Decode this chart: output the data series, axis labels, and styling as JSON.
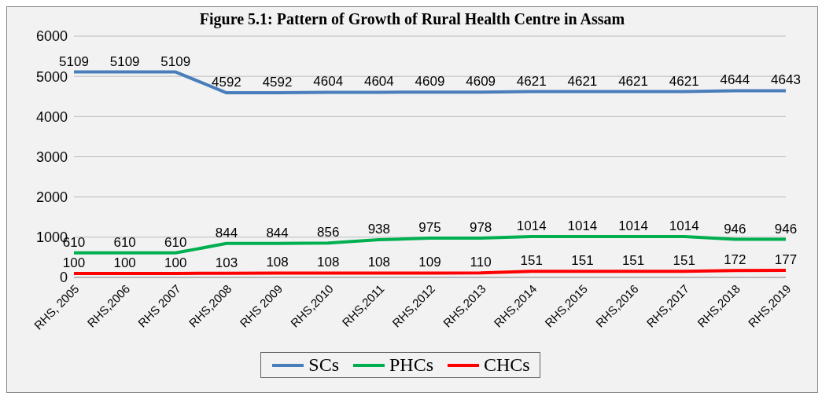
{
  "chart_data": {
    "type": "line",
    "title": "Figure 5.1: Pattern of Growth of Rural Health Centre in Assam",
    "categories": [
      "RHS, 2005",
      "RHS,2006",
      "RHS 2007",
      "RHS,2008",
      "RHS 2009",
      "RHS,2010",
      "RHS,2011",
      "RHS,2012",
      "RHS,2013",
      "RHS,2014",
      "RHS,2015",
      "RHS,2016",
      "RHS,2017",
      "RHS,2018",
      "RHS,2019"
    ],
    "series": [
      {
        "name": "SCs",
        "color": "#4a7ebb",
        "values": [
          5109,
          5109,
          5109,
          4592,
          4592,
          4604,
          4604,
          4609,
          4609,
          4621,
          4621,
          4621,
          4621,
          4644,
          4643
        ]
      },
      {
        "name": "PHCs",
        "color": "#00b050",
        "values": [
          610,
          610,
          610,
          844,
          844,
          856,
          938,
          975,
          978,
          1014,
          1014,
          1014,
          1014,
          946,
          946
        ]
      },
      {
        "name": "CHCs",
        "color": "#ff0000",
        "values": [
          100,
          100,
          100,
          103,
          108,
          108,
          108,
          109,
          110,
          151,
          151,
          151,
          151,
          172,
          177
        ]
      }
    ],
    "ylim": [
      0,
      6000
    ],
    "yticks": [
      0,
      1000,
      2000,
      3000,
      4000,
      5000,
      6000
    ],
    "grid": "y",
    "legend": "bottom",
    "data_labels": true,
    "marker": "none",
    "line_style": "solid"
  }
}
